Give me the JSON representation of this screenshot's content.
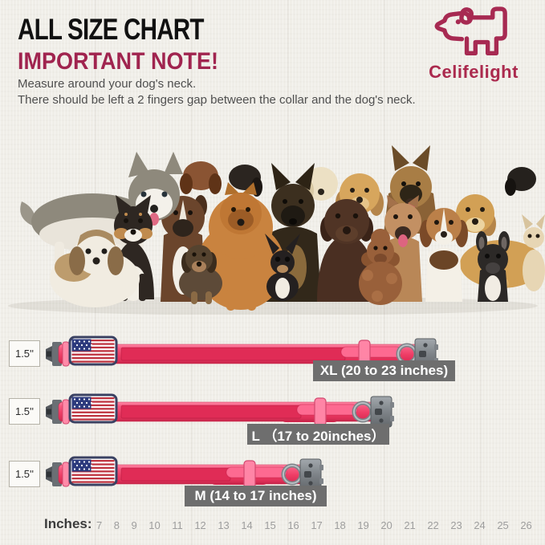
{
  "header": {
    "title": "ALL SIZE CHART",
    "subtitle": "IMPORTANT NOTE!",
    "note_lines": [
      "Measure around your dog's neck.",
      "There should be left a 2 fingers gap between the collar and the dog's neck."
    ]
  },
  "brand": {
    "name": "Celifelight",
    "logo_icon": "dog-outline-icon"
  },
  "hero": {
    "alt": "Group photo of dogs of many breeds and sizes"
  },
  "sizes": [
    {
      "size": "XL",
      "width_label": "1.5''",
      "label": "XL (20 to 23 inches)",
      "range_inches": [
        20,
        23
      ]
    },
    {
      "size": "L",
      "width_label": "1.5''",
      "label": "L （17 to 20inches）",
      "range_inches": [
        17,
        20
      ]
    },
    {
      "size": "M",
      "width_label": "1.5''",
      "label": "M (14 to 17 inches)",
      "range_inches": [
        14,
        17
      ]
    }
  ],
  "ruler": {
    "label": "Inches:",
    "values": [
      7,
      8,
      9,
      10,
      11,
      12,
      13,
      14,
      15,
      16,
      17,
      18,
      19,
      20,
      21,
      22,
      23,
      24,
      25,
      26
    ]
  },
  "colors": {
    "background": "#f0eee8",
    "title": "#111111",
    "note-accent": "#a0244f",
    "body-text": "#4f4f4f",
    "brand": "#ab2a4e",
    "collar-pink": "#ef3f67",
    "collar-pink-dark": "#d92a55",
    "collar-pink-light": "#ff8aa8",
    "velcro-pink": "#e02c56",
    "label-gray": "#6e6e6e",
    "label-text": "#ffffff",
    "ruler-label": "#3c3c3c",
    "ruler-text": "#9d9d9d",
    "metal-gray": "#82878c",
    "flag-blue": "#2c3a7d",
    "flag-red": "#bf3440"
  }
}
